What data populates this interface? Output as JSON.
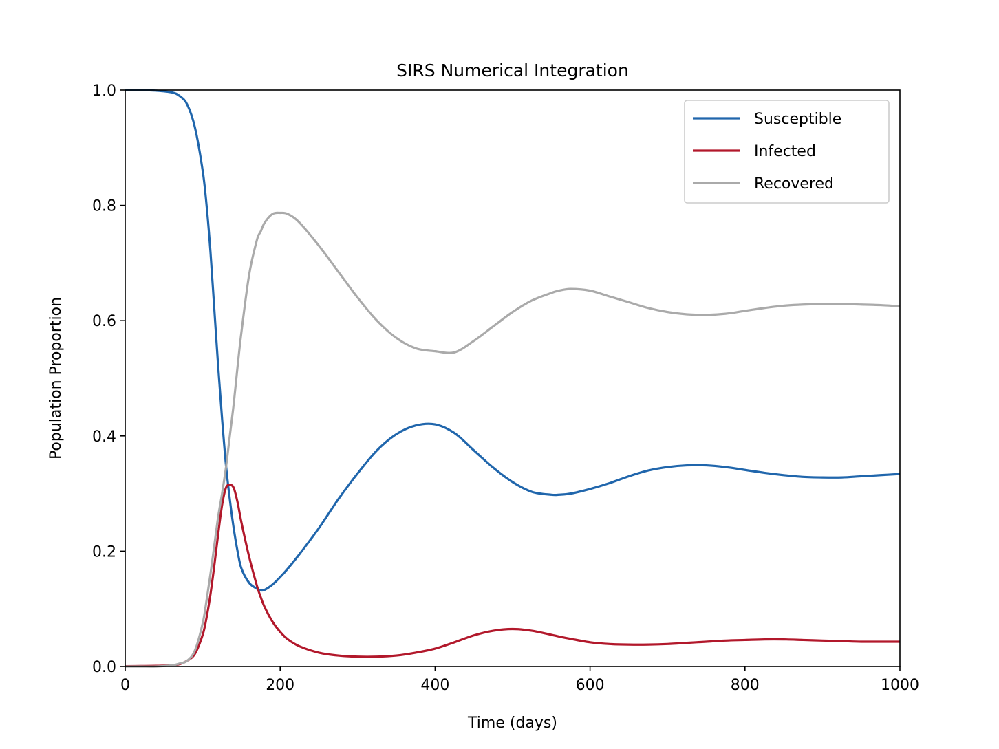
{
  "chart_data": {
    "type": "line",
    "title": "SIRS Numerical Integration",
    "xlabel": "Time (days)",
    "ylabel": "Population Proportion",
    "xlim": [
      0,
      1000
    ],
    "ylim": [
      0,
      1.0
    ],
    "xticks": [
      0,
      200,
      400,
      600,
      800,
      1000
    ],
    "xtick_labels": [
      "0",
      "200",
      "400",
      "600",
      "800",
      "1000"
    ],
    "yticks": [
      0,
      0.2,
      0.4,
      0.6,
      0.8,
      1.0
    ],
    "ytick_labels": [
      "0.0",
      "0.2",
      "0.4",
      "0.6",
      "0.8",
      "1.0"
    ],
    "grid": false,
    "legend_position": "top-right",
    "x": [
      0,
      20,
      40,
      60,
      70,
      80,
      90,
      100,
      105,
      110,
      115,
      120,
      125,
      130,
      135,
      140,
      145,
      150,
      160,
      170,
      175,
      180,
      190,
      200,
      210,
      225,
      250,
      275,
      300,
      325,
      350,
      375,
      400,
      425,
      450,
      475,
      500,
      525,
      550,
      560,
      575,
      600,
      625,
      650,
      675,
      700,
      725,
      750,
      775,
      800,
      825,
      850,
      875,
      900,
      925,
      950,
      975,
      1000
    ],
    "series": [
      {
        "name": "Susceptible",
        "color": "#2066ac",
        "values": [
          1.0,
          1.0,
          0.999,
          0.996,
          0.99,
          0.975,
          0.935,
          0.86,
          0.8,
          0.72,
          0.62,
          0.52,
          0.43,
          0.35,
          0.29,
          0.24,
          0.2,
          0.17,
          0.145,
          0.135,
          0.132,
          0.133,
          0.142,
          0.155,
          0.17,
          0.195,
          0.24,
          0.29,
          0.335,
          0.375,
          0.403,
          0.418,
          0.42,
          0.405,
          0.375,
          0.345,
          0.32,
          0.303,
          0.298,
          0.298,
          0.3,
          0.308,
          0.318,
          0.33,
          0.34,
          0.346,
          0.349,
          0.349,
          0.346,
          0.341,
          0.336,
          0.332,
          0.329,
          0.328,
          0.328,
          0.33,
          0.332,
          0.334
        ]
      },
      {
        "name": "Infected",
        "color": "#b2182b",
        "values": [
          0.0005,
          0.0007,
          0.001,
          0.002,
          0.004,
          0.01,
          0.022,
          0.055,
          0.085,
          0.125,
          0.175,
          0.23,
          0.28,
          0.31,
          0.315,
          0.31,
          0.285,
          0.25,
          0.19,
          0.14,
          0.12,
          0.103,
          0.078,
          0.06,
          0.047,
          0.035,
          0.024,
          0.019,
          0.017,
          0.017,
          0.019,
          0.024,
          0.031,
          0.042,
          0.054,
          0.062,
          0.065,
          0.062,
          0.055,
          0.052,
          0.048,
          0.042,
          0.039,
          0.038,
          0.038,
          0.039,
          0.041,
          0.043,
          0.045,
          0.046,
          0.047,
          0.047,
          0.046,
          0.045,
          0.044,
          0.043,
          0.043,
          0.043
        ]
      },
      {
        "name": "Recovered",
        "color": "#aaaaaa",
        "values": [
          0.0,
          0.0,
          0.0,
          0.002,
          0.005,
          0.01,
          0.028,
          0.075,
          0.115,
          0.16,
          0.21,
          0.26,
          0.3,
          0.345,
          0.4,
          0.455,
          0.52,
          0.58,
          0.68,
          0.74,
          0.755,
          0.77,
          0.785,
          0.787,
          0.785,
          0.77,
          0.73,
          0.685,
          0.64,
          0.6,
          0.57,
          0.552,
          0.547,
          0.545,
          0.565,
          0.59,
          0.615,
          0.635,
          0.648,
          0.652,
          0.655,
          0.652,
          0.642,
          0.632,
          0.622,
          0.615,
          0.611,
          0.61,
          0.612,
          0.617,
          0.622,
          0.626,
          0.628,
          0.629,
          0.629,
          0.628,
          0.627,
          0.625
        ]
      }
    ]
  }
}
